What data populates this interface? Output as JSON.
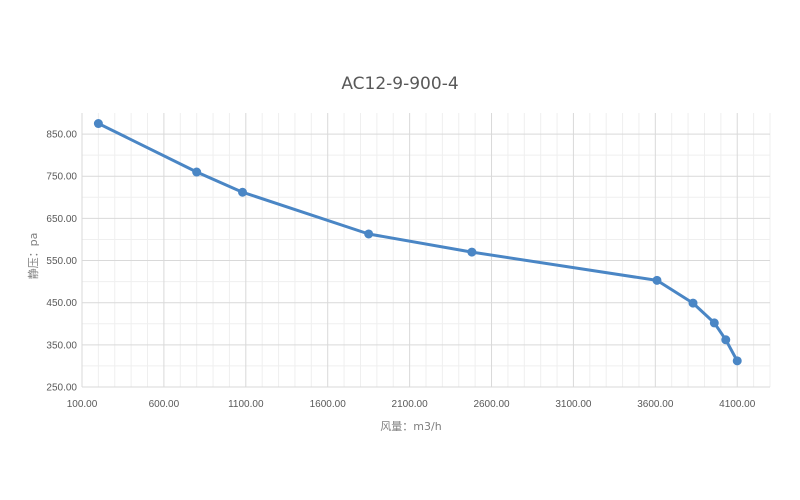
{
  "chart_data": {
    "type": "scatter",
    "title": "AC12-9-900-4",
    "xlabel": "风量：m3/h",
    "ylabel": "静压：pa",
    "xlim": [
      100,
      4300
    ],
    "ylim": [
      250,
      900
    ],
    "x_ticks": [
      "100.00",
      "600.00",
      "1100.00",
      "1600.00",
      "2100.00",
      "2600.00",
      "3100.00",
      "3600.00",
      "4100.00"
    ],
    "y_ticks": [
      "250.00",
      "350.00",
      "450.00",
      "550.00",
      "650.00",
      "750.00",
      "850.00"
    ],
    "grid": true,
    "legend": "none",
    "color": "#4a86c5",
    "series": [
      {
        "x": [
          200,
          800,
          1080,
          1850,
          2480,
          3610,
          3830,
          3960,
          4030,
          4100
        ],
        "y": [
          875,
          760,
          712,
          613,
          570,
          503,
          449,
          402,
          362,
          312
        ]
      }
    ]
  }
}
